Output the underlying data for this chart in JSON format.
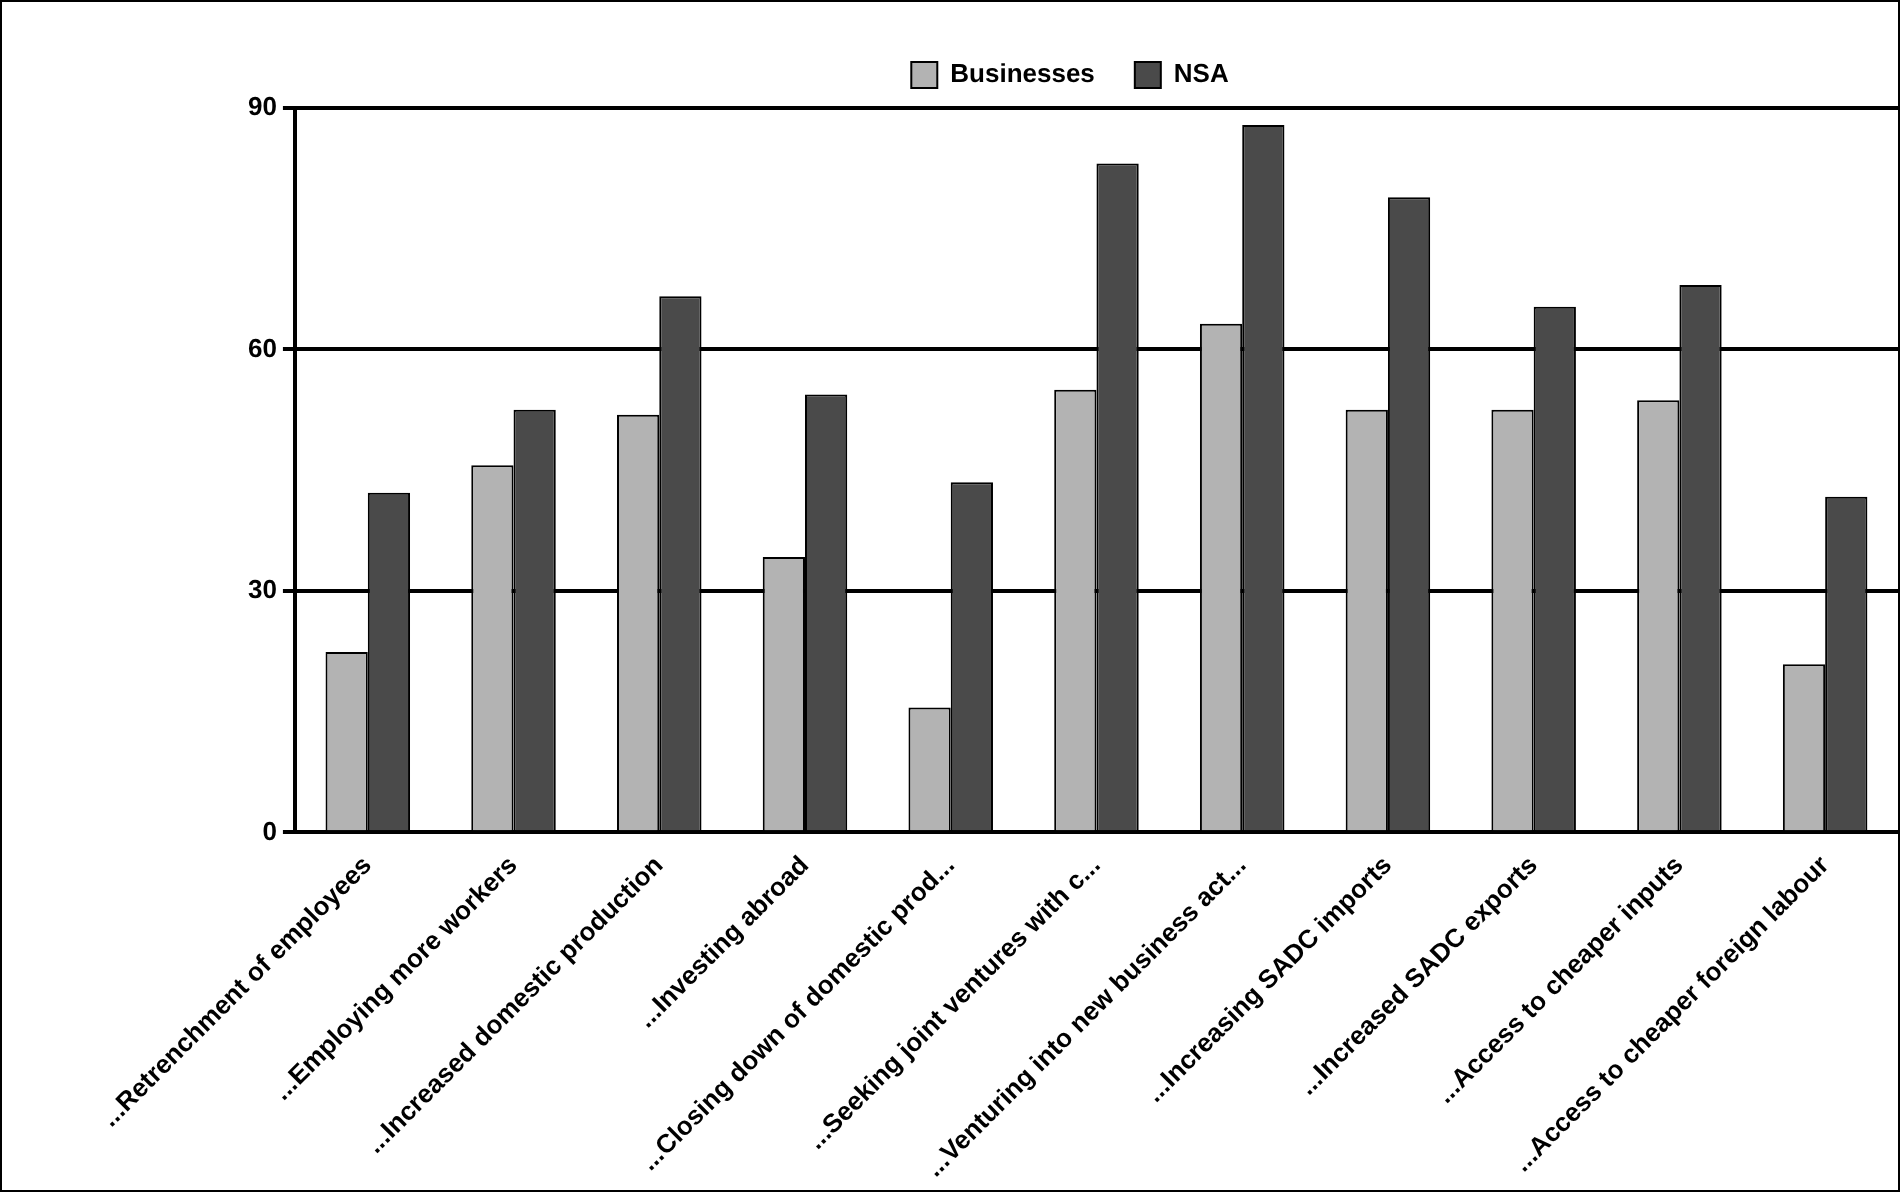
{
  "chart_data": {
    "type": "bar",
    "categories": [
      "...Retrenchment of employees",
      "...Employing more workers",
      "...Increased domestic production",
      "...Investing abroad",
      "...Closing down of domestic prod...",
      "...Seeking joint ventures with c...",
      "...Venturing into new business act...",
      "...Increasing SADC imports",
      "...Increased SADC exports",
      "...Access to cheaper inputs",
      "...Access to cheaper foreign labour"
    ],
    "series": [
      {
        "name": "Businesses",
        "color": "#b3b3b3",
        "values": [
          22.4,
          45.6,
          51.9,
          34.2,
          15.5,
          55,
          63.2,
          52.5,
          52.5,
          53.7,
          20.9
        ]
      },
      {
        "name": "NSA",
        "color": "#4a4a4a",
        "values": [
          42.2,
          52.5,
          66.6,
          54.4,
          43.5,
          83.1,
          87.9,
          78.9,
          65.3,
          68,
          41.7
        ]
      }
    ],
    "ylim": [
      0,
      90
    ],
    "yticks": [
      0,
      30,
      60,
      90
    ],
    "grid": "y",
    "legend": "top"
  }
}
